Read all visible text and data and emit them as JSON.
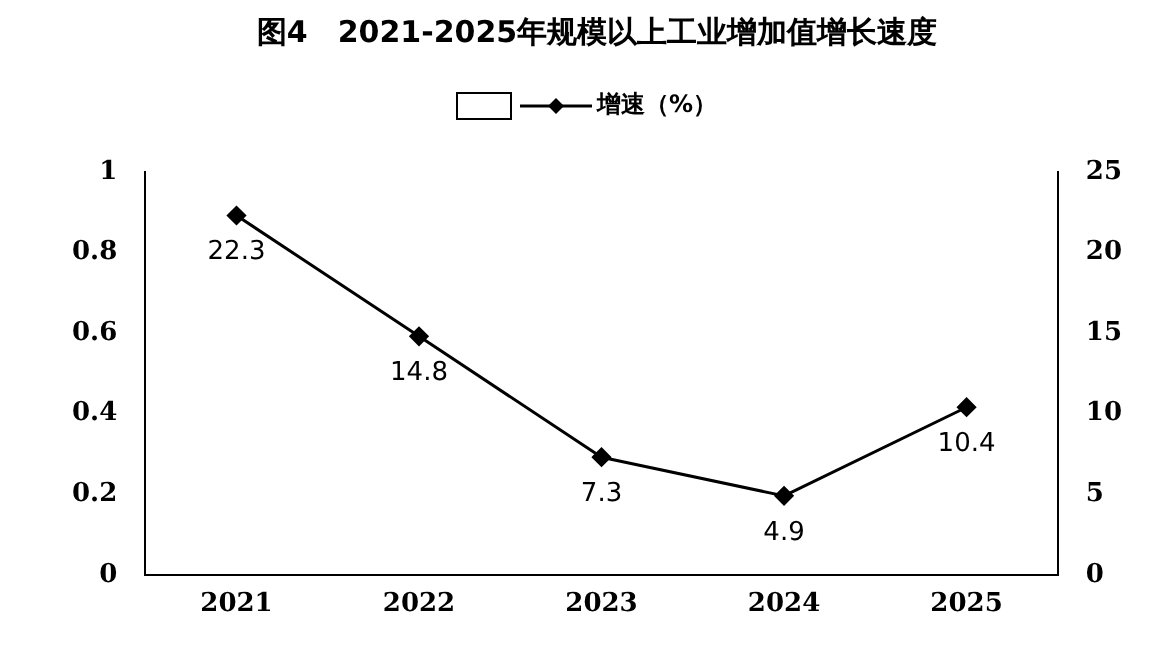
{
  "chart_data": {
    "type": "line",
    "title": "图4　2021-2025年规模以上工业增加值增长速度",
    "categories": [
      "2021",
      "2022",
      "2023",
      "2024",
      "2025"
    ],
    "series": [
      {
        "name": "增速（%）",
        "color": "#000000",
        "values": [
          22.3,
          14.8,
          7.3,
          4.9,
          10.4
        ],
        "axis": "y2"
      }
    ],
    "ylim": [
      0,
      1
    ],
    "yticks": [
      0,
      0.2,
      0.4,
      0.6,
      0.8,
      1
    ],
    "y2lim": [
      0,
      25
    ],
    "y2ticks": [
      0,
      5,
      10,
      15,
      20,
      25
    ],
    "data_labels": true,
    "legend": "top",
    "grid": false,
    "marker": "diamond",
    "line_style": "solid"
  }
}
